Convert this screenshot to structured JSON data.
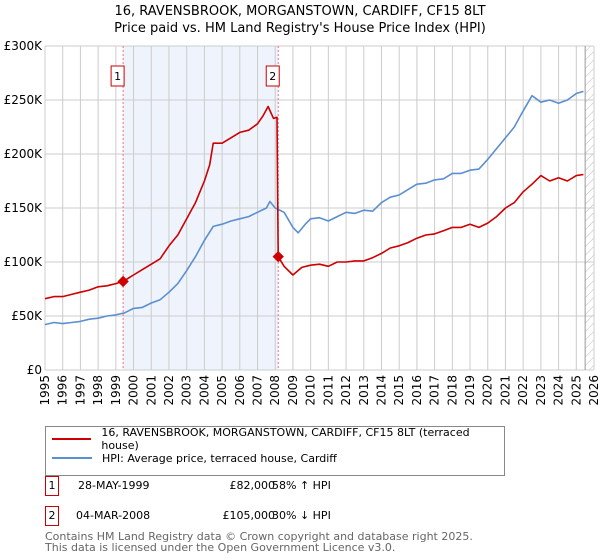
{
  "title": "16, RAVENSBROOK, MORGANSTOWN, CARDIFF, CF15 8LT",
  "subtitle": "Price paid vs. HM Land Registry's House Price Index (HPI)",
  "colors": {
    "property": "#cc0000",
    "hpi": "#5b8fd0",
    "shade": "#eef3fc",
    "grid": "#cccccc"
  },
  "chart_data": {
    "type": "line",
    "xlim": [
      1995,
      2026
    ],
    "ylim": [
      0,
      300000
    ],
    "yticks": [
      0,
      50000,
      100000,
      150000,
      200000,
      250000,
      300000
    ],
    "ytick_labels": [
      "£0",
      "£50K",
      "£100K",
      "£150K",
      "£200K",
      "£250K",
      "£300K"
    ],
    "xticks": [
      "1995",
      "1996",
      "1997",
      "1998",
      "1999",
      "2000",
      "2001",
      "2002",
      "2003",
      "2004",
      "2005",
      "2006",
      "2007",
      "2008",
      "2009",
      "2010",
      "2011",
      "2012",
      "2013",
      "2014",
      "2015",
      "2016",
      "2017",
      "2018",
      "2019",
      "2020",
      "2021",
      "2022",
      "2023",
      "2024",
      "2025",
      "2026"
    ],
    "grid": true,
    "data_end_year": 2025.5,
    "series": [
      {
        "name": "16, RAVENSBROOK, MORGANSTOWN, CARDIFF, CF15 8LT (terraced house)",
        "color": "#cc0000",
        "x": [
          1995,
          1995.5,
          1996,
          1996.5,
          1997,
          1997.5,
          1998,
          1998.5,
          1999,
          1999.41,
          2000,
          2000.5,
          2001,
          2001.5,
          2002,
          2002.5,
          2003,
          2003.5,
          2004,
          2004.3,
          2004.5,
          2005,
          2005.5,
          2006,
          2006.5,
          2007,
          2007.3,
          2007.6,
          2007.9,
          2008.1,
          2008.17,
          2008.5,
          2009,
          2009.5,
          2010,
          2010.5,
          2011,
          2011.5,
          2012,
          2012.5,
          2013,
          2013.5,
          2014,
          2014.5,
          2015,
          2015.5,
          2016,
          2016.5,
          2017,
          2017.5,
          2018,
          2018.5,
          2019,
          2019.5,
          2020,
          2020.5,
          2021,
          2021.5,
          2022,
          2022.5,
          2023,
          2023.5,
          2024,
          2024.5,
          2025,
          2025.4
        ],
        "y": [
          66000,
          68000,
          68000,
          70000,
          72000,
          74000,
          77000,
          78000,
          80000,
          82000,
          88000,
          93000,
          98000,
          103000,
          115000,
          125000,
          140000,
          155000,
          175000,
          190000,
          210000,
          210000,
          215000,
          220000,
          222000,
          228000,
          235000,
          244000,
          233000,
          234000,
          105000,
          96000,
          88000,
          95000,
          97000,
          98000,
          96000,
          100000,
          100000,
          101000,
          101000,
          104000,
          108000,
          113000,
          115000,
          118000,
          122000,
          125000,
          126000,
          129000,
          132000,
          132000,
          135000,
          132000,
          136000,
          142000,
          150000,
          155000,
          165000,
          172000,
          180000,
          175000,
          178000,
          175000,
          180000,
          181000
        ]
      },
      {
        "name": "HPI: Average price, terraced house, Cardiff",
        "color": "#5b8fd0",
        "x": [
          1995,
          1995.5,
          1996,
          1996.5,
          1997,
          1997.5,
          1998,
          1998.5,
          1999,
          1999.5,
          2000,
          2000.5,
          2001,
          2001.5,
          2002,
          2002.5,
          2003,
          2003.5,
          2004,
          2004.5,
          2005,
          2005.5,
          2006,
          2006.5,
          2007,
          2007.5,
          2007.7,
          2008,
          2008.5,
          2009,
          2009.3,
          2009.7,
          2010,
          2010.5,
          2011,
          2011.5,
          2012,
          2012.5,
          2013,
          2013.5,
          2014,
          2014.5,
          2015,
          2015.5,
          2016,
          2016.5,
          2017,
          2017.5,
          2018,
          2018.5,
          2019,
          2019.5,
          2020,
          2020.5,
          2021,
          2021.5,
          2022,
          2022.5,
          2023,
          2023.5,
          2024,
          2024.5,
          2025,
          2025.4
        ],
        "y": [
          42000,
          44000,
          43000,
          44000,
          45000,
          47000,
          48000,
          50000,
          51000,
          53000,
          57000,
          58000,
          62000,
          65000,
          72000,
          80000,
          92000,
          105000,
          120000,
          133000,
          135000,
          138000,
          140000,
          142000,
          146000,
          150000,
          156000,
          150000,
          146000,
          132000,
          127000,
          135000,
          140000,
          141000,
          138000,
          142000,
          146000,
          145000,
          148000,
          147000,
          155000,
          160000,
          162000,
          167000,
          172000,
          173000,
          176000,
          177000,
          182000,
          182000,
          185000,
          186000,
          195000,
          205000,
          215000,
          225000,
          240000,
          254000,
          248000,
          250000,
          247000,
          250000,
          256000,
          258000
        ]
      }
    ],
    "sales": [
      {
        "label": "1",
        "x": 1999.41,
        "y": 82000
      },
      {
        "label": "2",
        "x": 2008.17,
        "y": 105000
      }
    ]
  },
  "legend": {
    "property": "16, RAVENSBROOK, MORGANSTOWN, CARDIFF, CF15 8LT (terraced house)",
    "hpi": "HPI: Average price, terraced house, Cardiff"
  },
  "sales_table": [
    {
      "num": "1",
      "date": "28-MAY-1999",
      "price": "£82,000",
      "hpi": "58% ↑ HPI"
    },
    {
      "num": "2",
      "date": "04-MAR-2008",
      "price": "£105,000",
      "hpi": "30% ↓ HPI"
    }
  ],
  "footer": {
    "line1": "Contains HM Land Registry data © Crown copyright and database right 2025.",
    "line2": "This data is licensed under the Open Government Licence v3.0."
  }
}
